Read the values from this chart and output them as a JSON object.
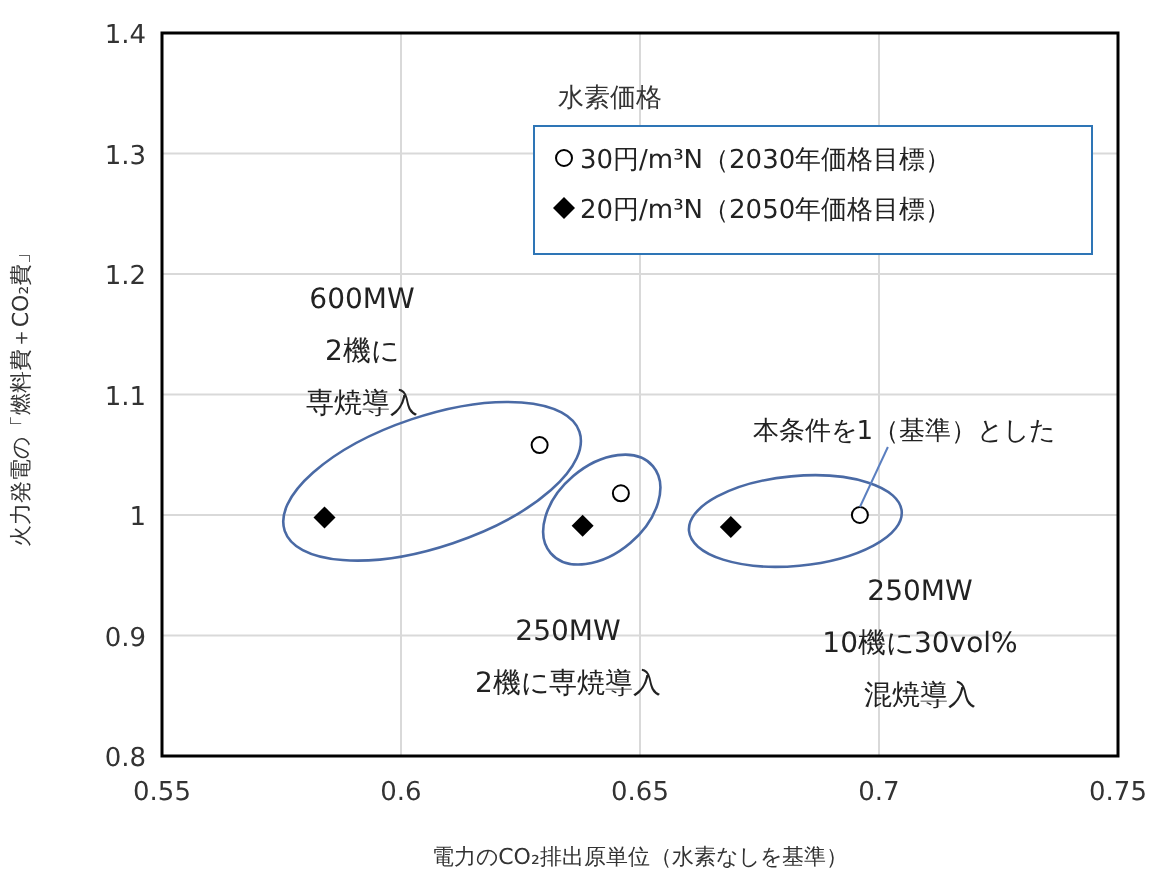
{
  "chart_data": {
    "type": "scatter",
    "xlabel": "電力のCO₂排出原単位（水素なしを基準）",
    "ylabel": "火力発電の「燃料費＋CO₂費」",
    "legend_title": "水素価格",
    "series": [
      {
        "name": "30円/m³N（2030年価格目標）",
        "color": "#000000",
        "marker": "circle",
        "x": [
          0.629,
          0.646,
          0.696
        ],
        "values": [
          1.058,
          1.018,
          1.0
        ]
      },
      {
        "name": "20円/m³N（2050年価格目標）",
        "color": "#000000",
        "marker": "diamond",
        "x": [
          0.584,
          0.638,
          0.669
        ],
        "values": [
          0.998,
          0.991,
          0.99
        ]
      }
    ],
    "xlim": [
      0.55,
      0.75
    ],
    "xticks": [
      0.55,
      0.6,
      0.65,
      0.7,
      0.75
    ],
    "ylim": [
      0.8,
      1.4
    ],
    "yticks": [
      0.8,
      0.9,
      1,
      1.1,
      1.2,
      1.3,
      1.4
    ],
    "grid": true,
    "legend": "top right",
    "annotations": [
      "600MW",
      "2機に",
      "専焼導入",
      "250MW",
      "2機に専焼導入",
      "250MW",
      "10機に30vol%",
      "混焼導入",
      {
        "text": "本条件を1（基準）とした",
        "x": 0.696,
        "y": 1.0
      }
    ]
  }
}
